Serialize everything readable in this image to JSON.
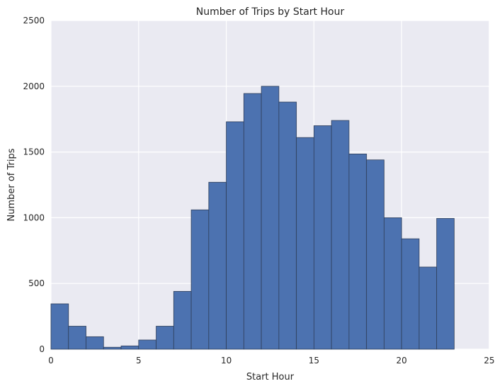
{
  "chart_data": {
    "type": "bar",
    "title": "Number of Trips by Start Hour",
    "xlabel": "Start Hour",
    "ylabel": "Number of Trips",
    "xlim": [
      0,
      25
    ],
    "ylim": [
      0,
      2500
    ],
    "xticks": [
      0,
      5,
      10,
      15,
      20,
      25
    ],
    "yticks": [
      0,
      500,
      1000,
      1500,
      2000,
      2500
    ],
    "grid": true,
    "legend": "none",
    "bins": [
      {
        "start": 0,
        "end": 1,
        "value": 345
      },
      {
        "start": 1,
        "end": 2,
        "value": 175
      },
      {
        "start": 2,
        "end": 3,
        "value": 95
      },
      {
        "start": 3,
        "end": 4,
        "value": 15
      },
      {
        "start": 4,
        "end": 5,
        "value": 25
      },
      {
        "start": 5,
        "end": 6,
        "value": 70
      },
      {
        "start": 6,
        "end": 7,
        "value": 175
      },
      {
        "start": 7,
        "end": 8,
        "value": 440
      },
      {
        "start": 8,
        "end": 9,
        "value": 1060
      },
      {
        "start": 9,
        "end": 10,
        "value": 1270
      },
      {
        "start": 10,
        "end": 11,
        "value": 1730
      },
      {
        "start": 11,
        "end": 12,
        "value": 1945
      },
      {
        "start": 12,
        "end": 13,
        "value": 2000
      },
      {
        "start": 13,
        "end": 14,
        "value": 1880
      },
      {
        "start": 14,
        "end": 15,
        "value": 1610
      },
      {
        "start": 15,
        "end": 16,
        "value": 1700
      },
      {
        "start": 16,
        "end": 17,
        "value": 1740
      },
      {
        "start": 17,
        "end": 18,
        "value": 1485
      },
      {
        "start": 18,
        "end": 19,
        "value": 1440
      },
      {
        "start": 19,
        "end": 20,
        "value": 1000
      },
      {
        "start": 20,
        "end": 21,
        "value": 840
      },
      {
        "start": 21,
        "end": 22,
        "value": 625
      },
      {
        "start": 22,
        "end": 23,
        "value": 995
      }
    ],
    "colors": {
      "bar_fill": "#4c72b0",
      "bar_edge": "#2f3f5a",
      "plot_bg": "#eaeaf2",
      "grid": "#ffffff"
    }
  }
}
